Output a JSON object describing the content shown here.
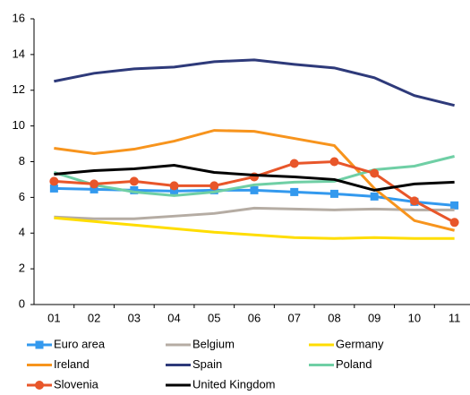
{
  "chart_data": {
    "type": "line",
    "categories": [
      "01",
      "02",
      "03",
      "04",
      "05",
      "06",
      "07",
      "08",
      "09",
      "10",
      "11"
    ],
    "ylim": [
      0,
      16
    ],
    "yticks": [
      0,
      2,
      4,
      6,
      8,
      10,
      12,
      14,
      16
    ],
    "grid": false,
    "legend": "bottom",
    "series": [
      {
        "name": "Euro area",
        "color": "#3399ee",
        "marker": "square",
        "values": [
          6.5,
          6.45,
          6.4,
          6.35,
          6.4,
          6.4,
          6.3,
          6.2,
          6.05,
          5.75,
          5.55
        ]
      },
      {
        "name": "Belgium",
        "color": "#b5aca3",
        "values": [
          4.9,
          4.8,
          4.8,
          4.95,
          5.1,
          5.4,
          5.35,
          5.3,
          5.35,
          5.3,
          5.3
        ]
      },
      {
        "name": "Germany",
        "color": "#ffdd00",
        "values": [
          4.85,
          4.65,
          4.45,
          4.25,
          4.05,
          3.9,
          3.75,
          3.7,
          3.75,
          3.7,
          3.7
        ]
      },
      {
        "name": "Ireland",
        "color": "#f7941d",
        "values": [
          8.75,
          8.45,
          8.7,
          9.15,
          9.75,
          9.7,
          9.3,
          8.9,
          6.5,
          4.7,
          4.15
        ]
      },
      {
        "name": "Spain",
        "color": "#2e3a7a",
        "values": [
          12.5,
          12.95,
          13.2,
          13.3,
          13.6,
          13.7,
          13.45,
          13.25,
          12.7,
          11.7,
          11.15
        ]
      },
      {
        "name": "Poland",
        "color": "#6fcfa5",
        "values": [
          7.4,
          6.7,
          6.3,
          6.1,
          6.3,
          6.7,
          6.85,
          6.9,
          7.55,
          7.75,
          8.3
        ]
      },
      {
        "name": "Slovenia",
        "color": "#e8562a",
        "marker": "circle",
        "values": [
          6.9,
          6.75,
          6.9,
          6.65,
          6.65,
          7.15,
          7.9,
          8.0,
          7.35,
          5.8,
          4.6
        ]
      },
      {
        "name": "United Kingdom",
        "color": "#000000",
        "values": [
          7.3,
          7.5,
          7.6,
          7.8,
          7.4,
          7.25,
          7.15,
          7.0,
          6.4,
          6.75,
          6.85
        ]
      }
    ]
  }
}
